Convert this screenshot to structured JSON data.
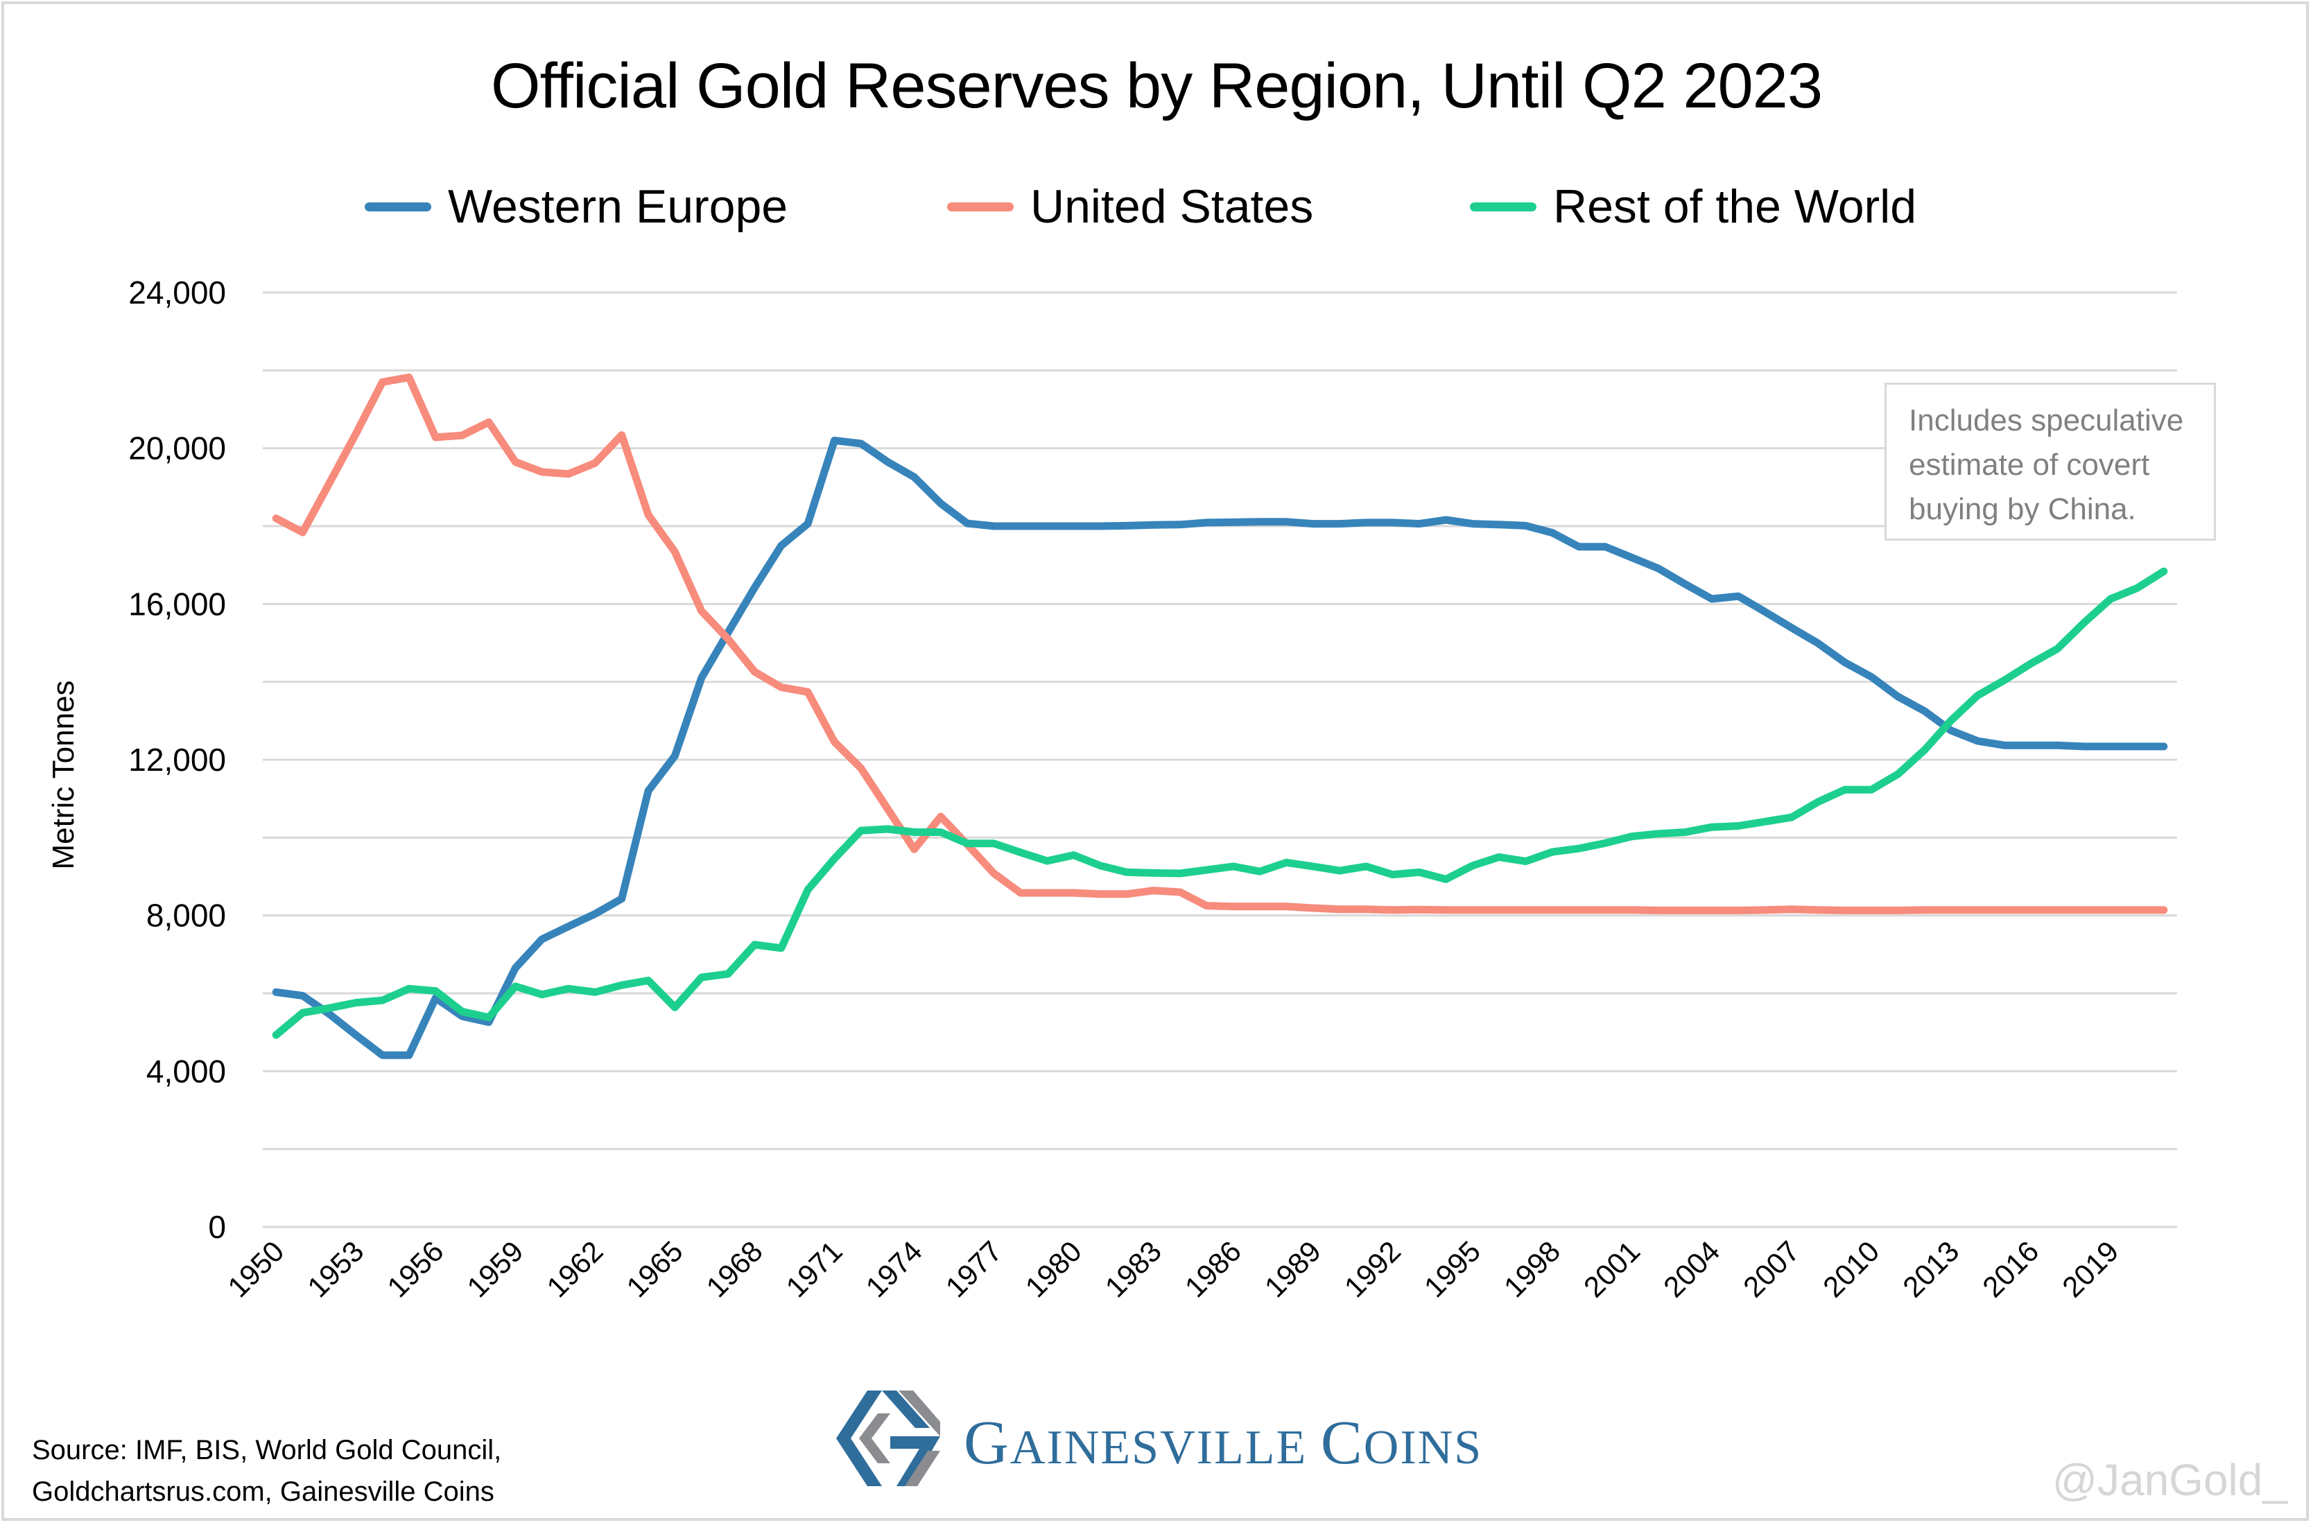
{
  "chart_data": {
    "type": "line",
    "title": "Official Gold Reserves by Region, Until Q2 2023",
    "xlabel": "",
    "ylabel": "Metric Tonnes",
    "ylim": [
      0,
      24000
    ],
    "yticks": [
      0,
      4000,
      8000,
      12000,
      16000,
      20000,
      24000
    ],
    "ytick_labels": [
      "0",
      "4,000",
      "8,000",
      "12,000",
      "16,000",
      "20,000",
      "24,000"
    ],
    "gridlines_every": 2000,
    "grid": true,
    "legend_position": "top",
    "x": [
      1950,
      1951,
      1952,
      1953,
      1954,
      1955,
      1956,
      1957,
      1958,
      1959,
      1960,
      1961,
      1962,
      1963,
      1964,
      1965,
      1966,
      1967,
      1968,
      1969,
      1970,
      1971,
      1972,
      1973,
      1974,
      1975,
      1976,
      1977,
      1978,
      1979,
      1980,
      1981,
      1982,
      1983,
      1984,
      1985,
      1986,
      1987,
      1988,
      1989,
      1990,
      1991,
      1992,
      1993,
      1994,
      1995,
      1996,
      1997,
      1998,
      1999,
      2000,
      2001,
      2002,
      2003,
      2004,
      2005,
      2006,
      2007,
      2008,
      2009,
      2010,
      2011,
      2012,
      2013,
      2014,
      2015,
      2016,
      2017,
      2018,
      2019,
      2020,
      2021
    ],
    "xtick_labels": [
      "1950",
      "1953",
      "1956",
      "1959",
      "1962",
      "1965",
      "1968",
      "1971",
      "1974",
      "1977",
      "1980",
      "1983",
      "1986",
      "1989",
      "1992",
      "1995",
      "1998",
      "2001",
      "2004",
      "2007",
      "2010",
      "2013",
      "2016",
      "2019"
    ],
    "series": [
      {
        "name": "Western Europe",
        "color": "#3784bb",
        "values": [
          6030,
          5940,
          5470,
          4930,
          4410,
          4410,
          5880,
          5410,
          5260,
          6650,
          7390,
          7720,
          8040,
          8430,
          11200,
          12100,
          14100,
          15270,
          16420,
          17500,
          18060,
          20200,
          20120,
          19650,
          19260,
          18580,
          18070,
          18000,
          18000,
          18000,
          18000,
          18000,
          18010,
          18030,
          18040,
          18090,
          18100,
          18110,
          18110,
          18060,
          18060,
          18090,
          18090,
          18060,
          18160,
          18060,
          18040,
          18010,
          17830,
          17470,
          17470,
          17190,
          16910,
          16510,
          16130,
          16200,
          15800,
          15390,
          14990,
          14500,
          14130,
          13620,
          13250,
          12750,
          12480,
          12370,
          12370,
          12370,
          12340,
          12340,
          12340,
          12340
        ]
      },
      {
        "name": "United States",
        "color": "#f78b7c",
        "values": [
          18200,
          17840,
          19100,
          20370,
          21700,
          21820,
          20280,
          20330,
          20670,
          19650,
          19390,
          19340,
          19620,
          20340,
          18290,
          17340,
          15820,
          15100,
          14260,
          13860,
          13740,
          12460,
          11780,
          10740,
          9700,
          10540,
          9820,
          9080,
          8580,
          8580,
          8580,
          8550,
          8550,
          8640,
          8600,
          8250,
          8230,
          8230,
          8230,
          8190,
          8160,
          8160,
          8140,
          8150,
          8140,
          8140,
          8140,
          8140,
          8140,
          8140,
          8140,
          8140,
          8130,
          8130,
          8130,
          8130,
          8140,
          8160,
          8140,
          8130,
          8130,
          8130,
          8140,
          8140,
          8140,
          8140,
          8140,
          8140,
          8140,
          8140,
          8140,
          8140
        ]
      },
      {
        "name": "Rest of the World",
        "color": "#1dcf8f",
        "values": [
          4930,
          5500,
          5620,
          5760,
          5820,
          6120,
          6060,
          5530,
          5380,
          6180,
          5970,
          6120,
          6030,
          6210,
          6330,
          5640,
          6410,
          6500,
          7250,
          7160,
          8660,
          9460,
          10180,
          10220,
          10140,
          10140,
          9850,
          9850,
          9620,
          9400,
          9550,
          9280,
          9110,
          9090,
          9080,
          9170,
          9260,
          9130,
          9360,
          9260,
          9150,
          9260,
          9050,
          9110,
          8930,
          9280,
          9500,
          9390,
          9630,
          9720,
          9860,
          10030,
          10100,
          10140,
          10270,
          10300,
          10410,
          10520,
          10920,
          11230,
          11230,
          11630,
          12250,
          13010,
          13650,
          14040,
          14470,
          14850,
          15520,
          16130,
          16410,
          16840
        ]
      }
    ],
    "annotations": [
      {
        "lines": [
          "Includes speculative",
          "estimate of covert",
          "buying by China."
        ],
        "position": "top-right"
      }
    ]
  },
  "footer": {
    "source_lines": [
      "Source: IMF, BIS, World Gold Council,",
      "Goldchartsrus.com, Gainesville Coins"
    ],
    "brand_first_initial": "G",
    "brand_first_rest": "AINESVILLE",
    "brand_second_initial": "C",
    "brand_second_rest": "OINS",
    "logo_icon": "gainesville-coins-g-logo",
    "logo_colors": {
      "blue": "#2f6d9b",
      "gray": "#8a8c90"
    },
    "watermark": "@JanGold_"
  }
}
